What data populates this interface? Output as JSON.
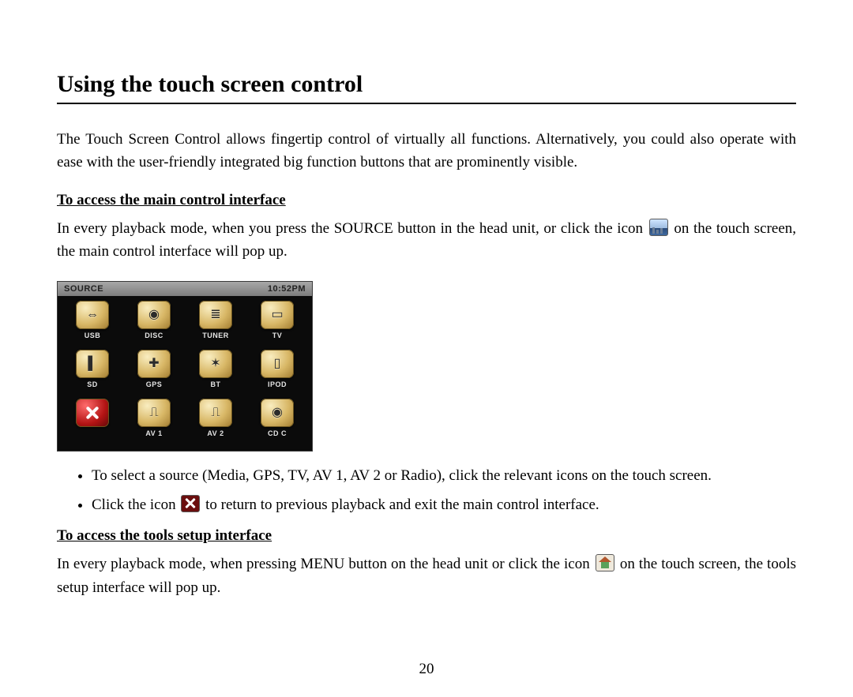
{
  "title": "Using the touch screen control",
  "intro": "The Touch Screen Control allows fingertip control of virtually all functions. Alternatively, you could also operate with ease with the user-friendly integrated big function buttons that are prominently visible.",
  "section1": {
    "heading": "To access the main control interface",
    "para_before_icon": "In every playback mode, when you press the SOURCE button in the head unit, or click the icon ",
    "para_after_icon": " on the touch screen, the main control interface will pop up.",
    "bullets": [
      "To select a source (Media, GPS, TV, AV 1, AV 2 or Radio), click the relevant icons on the touch screen.",
      null
    ],
    "bullet2_before_icon": "Click the icon ",
    "bullet2_after_icon": " to return to previous playback and exit the main control interface."
  },
  "section2": {
    "heading": "To access the tools setup interface",
    "para_before_icon": "In every playback mode, when pressing MENU button on the head unit or click the icon ",
    "para_after_icon": " on the touch screen, the tools setup interface will pop up."
  },
  "source_screen": {
    "header_left": "SOURCE",
    "header_right": "10:52PM",
    "items": [
      {
        "label": "USB",
        "glyph": "⇔"
      },
      {
        "label": "DISC",
        "glyph": "◉"
      },
      {
        "label": "TUNER",
        "glyph": "≣"
      },
      {
        "label": "TV",
        "glyph": "▭"
      },
      {
        "label": "SD",
        "glyph": "▌"
      },
      {
        "label": "GPS",
        "glyph": "✚"
      },
      {
        "label": "BT",
        "glyph": "✶"
      },
      {
        "label": "IPOD",
        "glyph": "▯"
      },
      {
        "label": "",
        "glyph": "close"
      },
      {
        "label": "AV 1",
        "glyph": "⎍"
      },
      {
        "label": "AV 2",
        "glyph": "⎍"
      },
      {
        "label": "CD C",
        "glyph": "◉"
      }
    ]
  },
  "page_number": "20"
}
